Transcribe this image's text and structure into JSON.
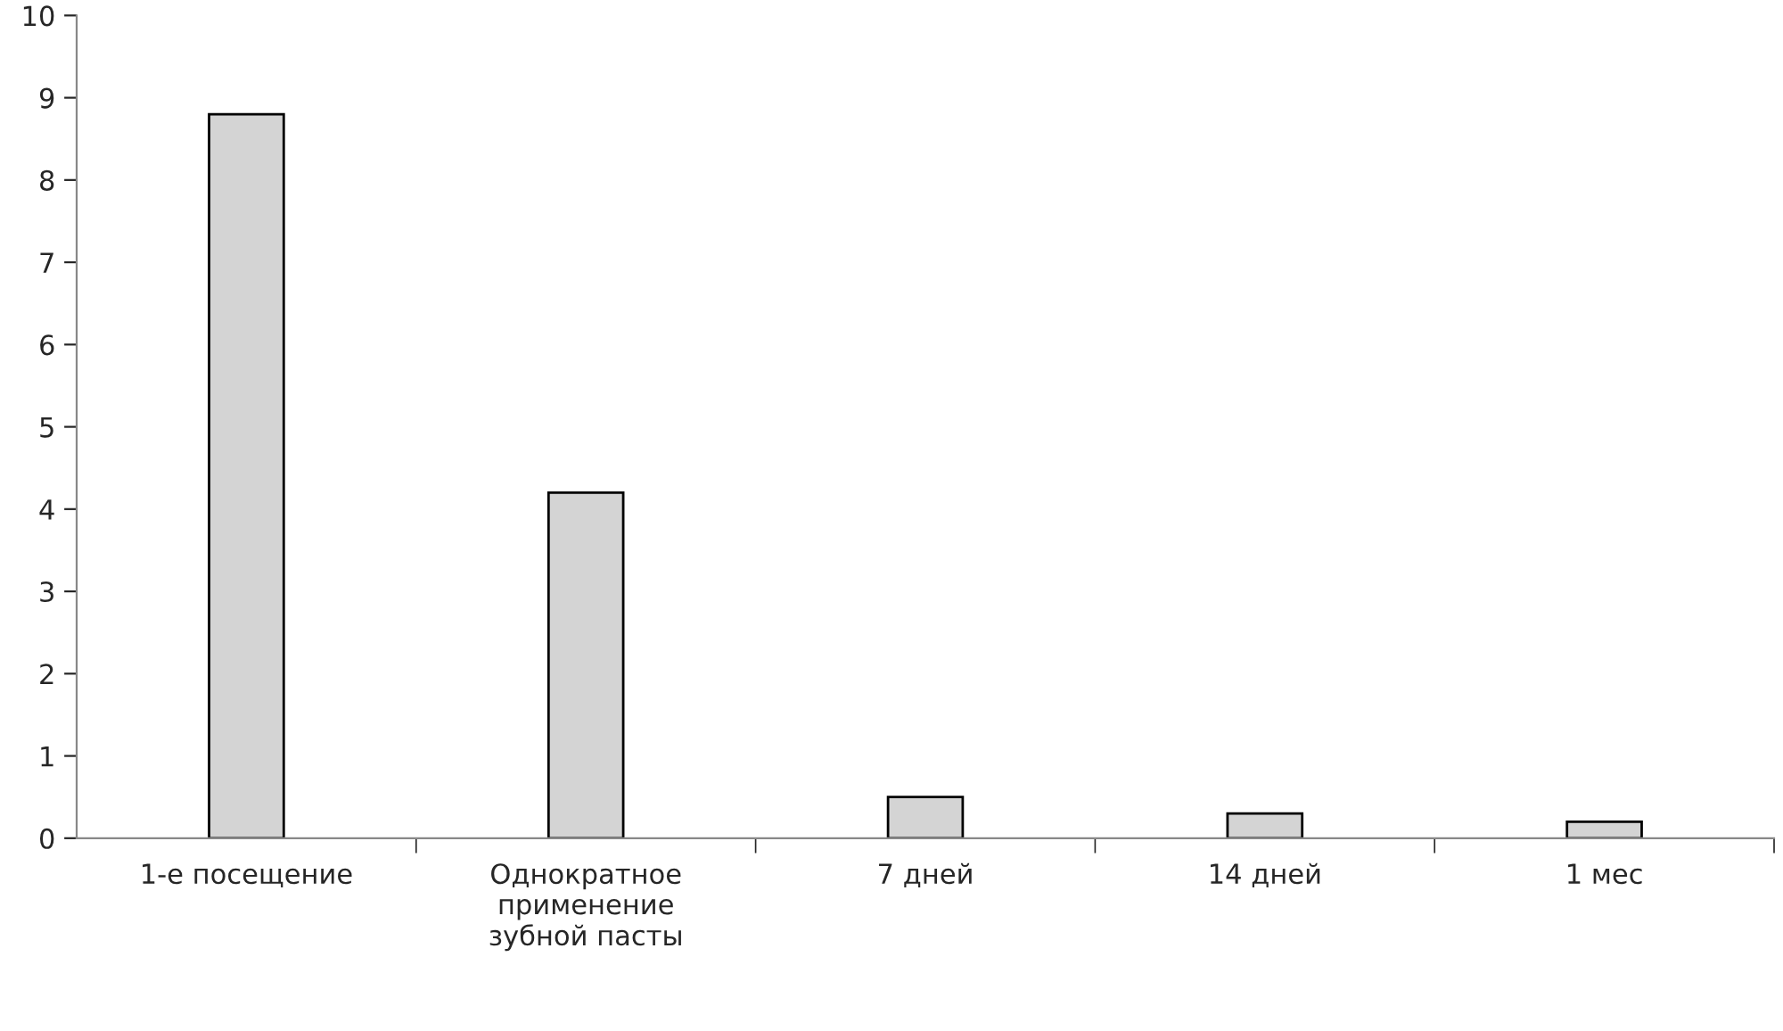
{
  "chart_data": {
    "type": "bar",
    "categories": [
      "1-е посещение",
      "Однократное\nприменение\nзубной пасты",
      "7 дней",
      "14 дней",
      "1 мес"
    ],
    "values": [
      8.8,
      4.2,
      0.5,
      0.3,
      0.2
    ],
    "color": "#d4d4d4",
    "ylim": [
      0,
      10
    ],
    "yticks": [
      0,
      1,
      2,
      3,
      4,
      5,
      6,
      7,
      8,
      9,
      10
    ],
    "grid": false
  }
}
